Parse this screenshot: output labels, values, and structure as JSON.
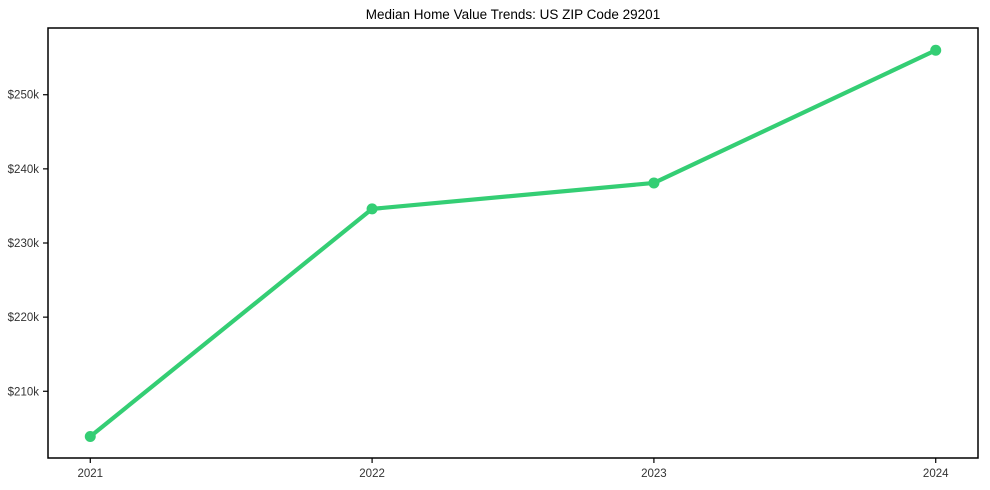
{
  "chart_data": {
    "type": "line",
    "title": "Median Home Value Trends: US ZIP Code 29201",
    "x": [
      2021,
      2022,
      2023,
      2024
    ],
    "x_tick_labels": [
      "2021",
      "2022",
      "2023",
      "2024"
    ],
    "values": [
      203900,
      234600,
      238100,
      256000
    ],
    "y_tick_values": [
      210000,
      220000,
      230000,
      240000,
      250000
    ],
    "y_tick_labels": [
      "$210k",
      "$220k",
      "$230k",
      "$240k",
      "$250k"
    ],
    "xlim": [
      2020.85,
      2024.15
    ],
    "ylim": [
      201000,
      259000
    ],
    "grid": false,
    "legend": "none",
    "marker": "circle",
    "frame": "full-box",
    "colors": {
      "line": "#34ce74",
      "marker": "#34ce74",
      "frame": "#000000",
      "tick_label": "#333333",
      "title": "#000000",
      "background": "#ffffff"
    }
  }
}
